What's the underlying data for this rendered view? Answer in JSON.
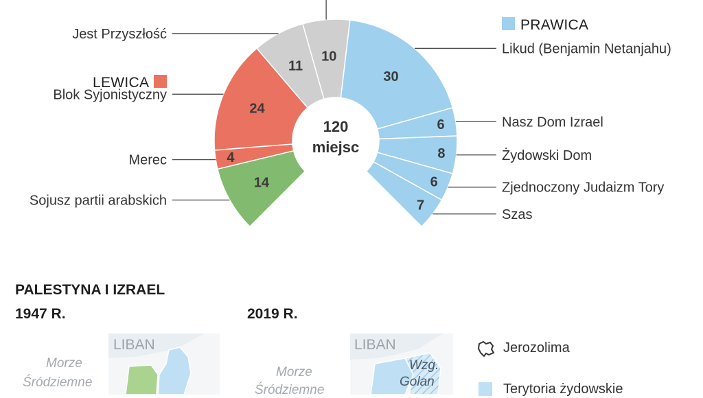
{
  "chart_data": {
    "type": "pie",
    "subtype": "half-donut",
    "center_label": [
      "120",
      "miejsc"
    ],
    "groups": [
      {
        "name": "PRAWICA",
        "color": "#9fd0ee"
      },
      {
        "name": "LEWICA",
        "color": "#ea7260"
      }
    ],
    "slices": [
      {
        "label": "Sojusz partii arabskich",
        "value": 14,
        "color": "#82bb6f"
      },
      {
        "label": "Merec",
        "value": 4,
        "color": "#ea7260"
      },
      {
        "label": "Blok Syjonistyczny",
        "value": 24,
        "color": "#ea7260"
      },
      {
        "label": "Jest Przyszłość",
        "value": 11,
        "color": "#cfcfcf"
      },
      {
        "label": "",
        "value": 10,
        "color": "#cfcfcf"
      },
      {
        "label": "Likud (Benjamin Netanjahu)",
        "value": 30,
        "color": "#9fd0ee"
      },
      {
        "label": "Nasz Dom Izrael",
        "value": 6,
        "color": "#9fd0ee"
      },
      {
        "label": "Żydowski Dom",
        "value": 8,
        "color": "#9fd0ee"
      },
      {
        "label": "Zjednoczony Judaizm Tory",
        "value": 6,
        "color": "#9fd0ee"
      },
      {
        "label": "Szas",
        "value": 7,
        "color": "#9fd0ee"
      }
    ]
  },
  "maps": {
    "section_title": "PALESTYNA I IZRAEL",
    "year_left": "1947 R.",
    "year_right": "2019 R.",
    "label_liban": "LIBAN",
    "label_golan": [
      "Wzg.",
      "Golan"
    ],
    "sea_label": [
      "Morze",
      "Śródziemne"
    ],
    "legend": [
      {
        "label": "Jerozolima",
        "icon": "jerusalem-outline-icon"
      },
      {
        "label": "Terytoria żydowskie",
        "color": "#bfe0f4"
      }
    ]
  }
}
